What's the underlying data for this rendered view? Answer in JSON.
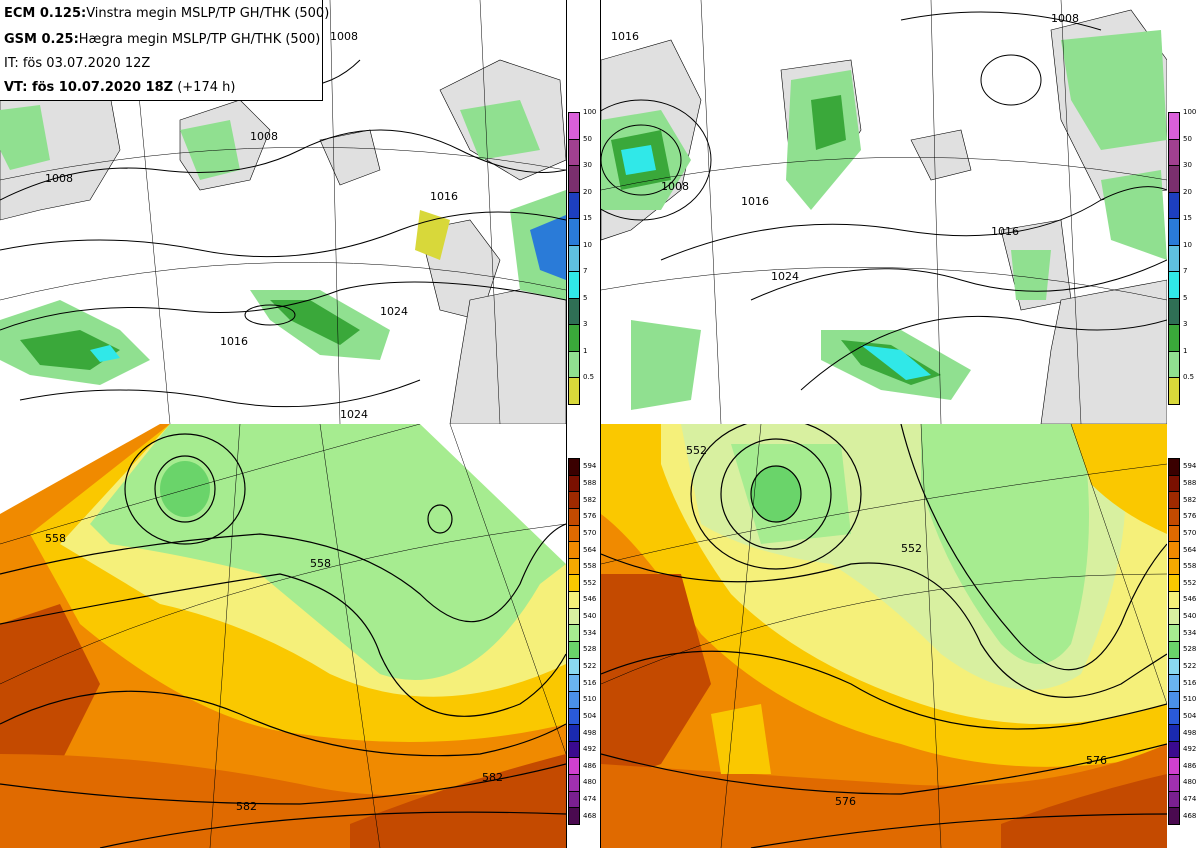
{
  "header": {
    "line1_label": "ECM 0.125:",
    "line1_text": "Vinstra megin MSLP/TP GH/THK (500)",
    "line2_label": "GSM 0.25:",
    "line2_text": "Hægra megin MSLP/TP GH/THK (500)",
    "line3_text": "IT: fös 03.07.2020 12Z",
    "line4_label": "VT: fös 10.07.2020 18Z",
    "line4_text": "(+174 h)"
  },
  "precip_legend": {
    "labels": [
      "100",
      "50",
      "30",
      "20",
      "15",
      "10",
      "7",
      "5",
      "3",
      "1",
      "0.5"
    ],
    "colors": [
      "#d95fd9",
      "#a04090",
      "#7a2f6e",
      "#1d3fbf",
      "#2a7bd8",
      "#5fc0e0",
      "#30e8e8",
      "#2f6f55",
      "#3aa83a",
      "#90e090",
      "#d8d83a"
    ]
  },
  "thickness_legend": {
    "labels": [
      "594",
      "588",
      "582",
      "576",
      "570",
      "564",
      "558",
      "552",
      "546",
      "540",
      "534",
      "528",
      "522",
      "516",
      "510",
      "504",
      "498",
      "492",
      "486",
      "480",
      "474",
      "468"
    ],
    "colors": [
      "#3a0000",
      "#7a1000",
      "#a02a00",
      "#c44a00",
      "#e06a00",
      "#f08a00",
      "#f5a800",
      "#fac800",
      "#f5f07a",
      "#d8f0a0",
      "#a6ec90",
      "#6ad46a",
      "#8ad8f0",
      "#6ab4f0",
      "#4a90e8",
      "#2a5ad8",
      "#1a2ab0",
      "#3a0a90",
      "#d040d0",
      "#a030b0",
      "#7a2090",
      "#4a0a50"
    ]
  },
  "top_left_contour_labels": [
    "1008",
    "1008",
    "1008",
    "1016",
    "1016",
    "1024",
    "1024"
  ],
  "top_right_contour_labels": [
    "1008",
    "1008",
    "1016",
    "1016",
    "1016",
    "1024"
  ],
  "bottom_left_contour_labels": [
    "558",
    "558",
    "582",
    "582"
  ],
  "bottom_right_contour_labels": [
    "552",
    "552",
    "576",
    "576"
  ]
}
